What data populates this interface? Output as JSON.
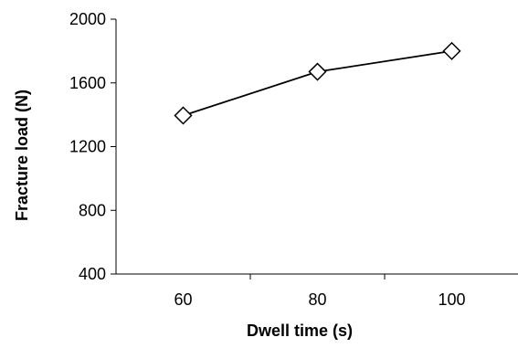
{
  "chart_data": {
    "type": "line",
    "title": "",
    "xlabel": "Dwell time (s)",
    "ylabel": "Fracture load (N)",
    "categories": [
      "60",
      "80",
      "100"
    ],
    "x": [
      60,
      80,
      100
    ],
    "series": [
      {
        "values": [
          1395,
          1670,
          1800
        ],
        "marker": "diamond-open",
        "color": "#000000"
      }
    ],
    "ylim": [
      400,
      2000
    ],
    "yticks": [
      400,
      800,
      1200,
      1600,
      2000
    ],
    "ytick_labels": [
      "400",
      "800",
      "1200",
      "1600",
      "2000"
    ],
    "grid": false,
    "legend": "none"
  }
}
